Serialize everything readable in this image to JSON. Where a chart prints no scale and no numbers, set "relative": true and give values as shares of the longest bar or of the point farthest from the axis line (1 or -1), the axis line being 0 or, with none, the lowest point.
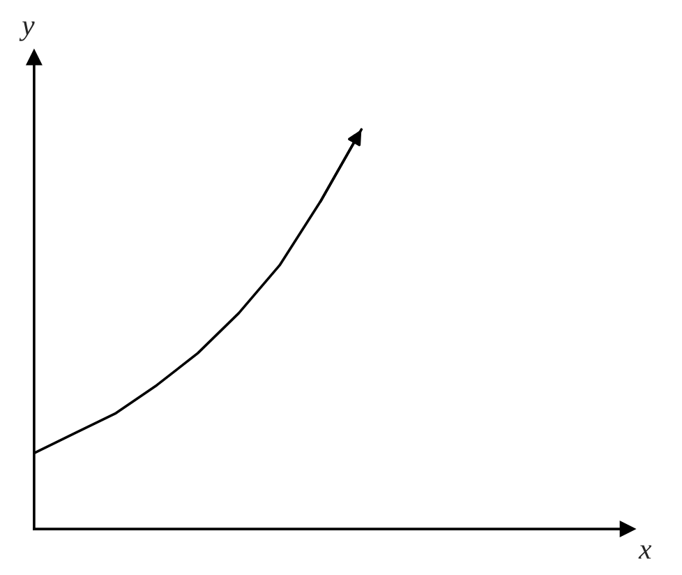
{
  "chart_data": {
    "type": "line",
    "xlabel": "x",
    "ylabel": "y",
    "relative": true,
    "categories": [
      null,
      null,
      null,
      null,
      null,
      null,
      null,
      null,
      null,
      null,
      null,
      null,
      null,
      null,
      null
    ],
    "series": [
      {
        "color": "#000000",
        "values": [
          0.19,
          0.24,
          0.29,
          0.36,
          0.44,
          0.54,
          0.66,
          0.82,
          1.0,
          null,
          null,
          null,
          null,
          null,
          null
        ]
      }
    ],
    "grid": false,
    "legend": false,
    "marker": "none",
    "line_style": "solid"
  }
}
